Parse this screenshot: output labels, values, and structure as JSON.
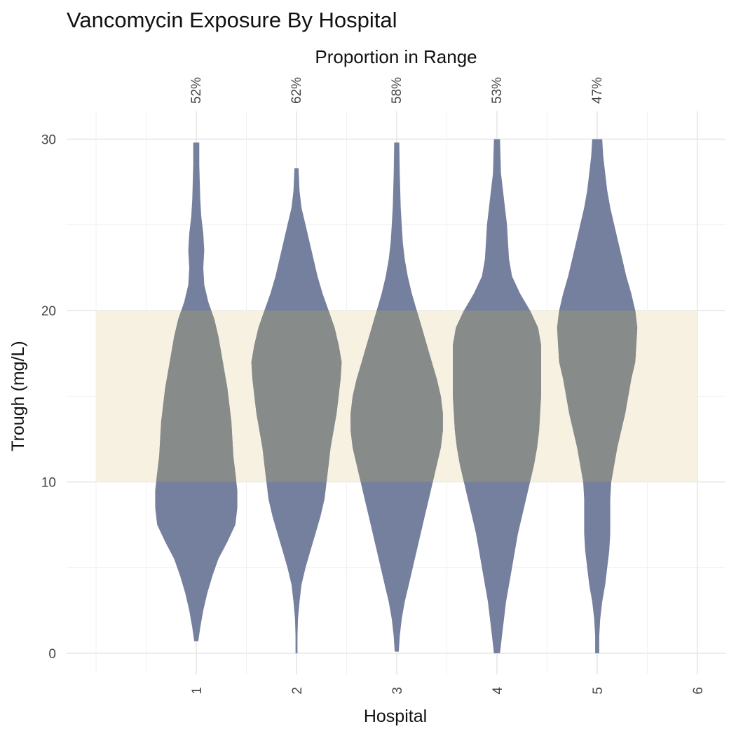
{
  "chart_data": {
    "type": "violin",
    "title": "Vancomycin Exposure By Hospital",
    "subtitle": "Proportion in Range",
    "xlabel": "Hospital",
    "ylabel": "Trough (mg/L)",
    "x_ticks": [
      "1",
      "2",
      "3",
      "4",
      "5",
      "6"
    ],
    "y_ticks": [
      "0",
      "10",
      "20",
      "30"
    ],
    "ylim": [
      0,
      30
    ],
    "xlim": [
      0,
      6
    ],
    "grid": true,
    "target_range": {
      "min": 10,
      "max": 20,
      "color": "#f7f1e1"
    },
    "violin_color": "#75809f",
    "overlap_color": "#878b8a",
    "hospitals": [
      {
        "x": 1,
        "proportion_in_range": "52%",
        "density": [
          [
            0.7,
            0.02
          ],
          [
            1.5,
            0.04
          ],
          [
            2.5,
            0.07
          ],
          [
            3.5,
            0.11
          ],
          [
            4.5,
            0.16
          ],
          [
            5.5,
            0.22
          ],
          [
            6.5,
            0.31
          ],
          [
            7.5,
            0.39
          ],
          [
            8.5,
            0.41
          ],
          [
            9.5,
            0.41
          ],
          [
            10.5,
            0.39
          ],
          [
            11.5,
            0.37
          ],
          [
            12.5,
            0.36
          ],
          [
            13.5,
            0.35
          ],
          [
            14.5,
            0.33
          ],
          [
            15.5,
            0.31
          ],
          [
            16.5,
            0.28
          ],
          [
            17.5,
            0.25
          ],
          [
            18.5,
            0.22
          ],
          [
            19.5,
            0.18
          ],
          [
            20.5,
            0.12
          ],
          [
            21.5,
            0.08
          ],
          [
            22.5,
            0.07
          ],
          [
            23.5,
            0.08
          ],
          [
            24.5,
            0.07
          ],
          [
            25.5,
            0.05
          ],
          [
            26.5,
            0.04
          ],
          [
            27.5,
            0.035
          ],
          [
            28.5,
            0.03
          ],
          [
            29.8,
            0.03
          ]
        ]
      },
      {
        "x": 2,
        "proportion_in_range": "62%",
        "density": [
          [
            0,
            0.01
          ],
          [
            1,
            0.01
          ],
          [
            2,
            0.015
          ],
          [
            3,
            0.03
          ],
          [
            4,
            0.05
          ],
          [
            5,
            0.09
          ],
          [
            6,
            0.14
          ],
          [
            7,
            0.19
          ],
          [
            8,
            0.24
          ],
          [
            9,
            0.28
          ],
          [
            10,
            0.3
          ],
          [
            11,
            0.32
          ],
          [
            12,
            0.34
          ],
          [
            13,
            0.37
          ],
          [
            14,
            0.4
          ],
          [
            15,
            0.42
          ],
          [
            16,
            0.44
          ],
          [
            17,
            0.45
          ],
          [
            18,
            0.42
          ],
          [
            19,
            0.38
          ],
          [
            20,
            0.32
          ],
          [
            21,
            0.26
          ],
          [
            22,
            0.21
          ],
          [
            23,
            0.17
          ],
          [
            24,
            0.13
          ],
          [
            25,
            0.09
          ],
          [
            26,
            0.05
          ],
          [
            27,
            0.03
          ],
          [
            28.3,
            0.02
          ]
        ]
      },
      {
        "x": 3,
        "proportion_in_range": "58%",
        "density": [
          [
            0.1,
            0.02
          ],
          [
            1,
            0.03
          ],
          [
            2,
            0.05
          ],
          [
            3,
            0.08
          ],
          [
            4,
            0.12
          ],
          [
            5,
            0.16
          ],
          [
            6,
            0.2
          ],
          [
            7,
            0.24
          ],
          [
            8,
            0.28
          ],
          [
            9,
            0.32
          ],
          [
            10,
            0.36
          ],
          [
            11,
            0.4
          ],
          [
            12,
            0.44
          ],
          [
            13,
            0.46
          ],
          [
            14,
            0.46
          ],
          [
            15,
            0.44
          ],
          [
            16,
            0.4
          ],
          [
            17,
            0.35
          ],
          [
            18,
            0.3
          ],
          [
            19,
            0.25
          ],
          [
            20,
            0.2
          ],
          [
            21,
            0.15
          ],
          [
            22,
            0.11
          ],
          [
            23,
            0.08
          ],
          [
            24,
            0.06
          ],
          [
            25,
            0.05
          ],
          [
            26,
            0.04
          ],
          [
            27,
            0.035
          ],
          [
            28,
            0.03
          ],
          [
            29.8,
            0.025
          ]
        ]
      },
      {
        "x": 4,
        "proportion_in_range": "53%",
        "density": [
          [
            0,
            0.03
          ],
          [
            1,
            0.05
          ],
          [
            2,
            0.07
          ],
          [
            3,
            0.09
          ],
          [
            4,
            0.12
          ],
          [
            5,
            0.15
          ],
          [
            6,
            0.18
          ],
          [
            7,
            0.21
          ],
          [
            8,
            0.25
          ],
          [
            9,
            0.29
          ],
          [
            10,
            0.33
          ],
          [
            11,
            0.37
          ],
          [
            12,
            0.4
          ],
          [
            13,
            0.42
          ],
          [
            14,
            0.43
          ],
          [
            15,
            0.44
          ],
          [
            16,
            0.44
          ],
          [
            17,
            0.44
          ],
          [
            18,
            0.44
          ],
          [
            19,
            0.41
          ],
          [
            20,
            0.33
          ],
          [
            21,
            0.23
          ],
          [
            22,
            0.15
          ],
          [
            23,
            0.12
          ],
          [
            24,
            0.11
          ],
          [
            25,
            0.1
          ],
          [
            26,
            0.08
          ],
          [
            27,
            0.06
          ],
          [
            28,
            0.04
          ],
          [
            30,
            0.03
          ]
        ]
      },
      {
        "x": 5,
        "proportion_in_range": "47%",
        "density": [
          [
            0,
            0.02
          ],
          [
            1,
            0.02
          ],
          [
            2,
            0.03
          ],
          [
            3,
            0.05
          ],
          [
            4,
            0.08
          ],
          [
            5,
            0.1
          ],
          [
            6,
            0.12
          ],
          [
            7,
            0.13
          ],
          [
            8,
            0.13
          ],
          [
            9,
            0.13
          ],
          [
            10,
            0.14
          ],
          [
            11,
            0.17
          ],
          [
            12,
            0.2
          ],
          [
            13,
            0.24
          ],
          [
            14,
            0.28
          ],
          [
            15,
            0.31
          ],
          [
            16,
            0.34
          ],
          [
            17,
            0.38
          ],
          [
            18,
            0.39
          ],
          [
            19,
            0.4
          ],
          [
            20,
            0.38
          ],
          [
            21,
            0.34
          ],
          [
            22,
            0.29
          ],
          [
            23,
            0.25
          ],
          [
            24,
            0.21
          ],
          [
            25,
            0.17
          ],
          [
            26,
            0.13
          ],
          [
            27,
            0.1
          ],
          [
            28,
            0.08
          ],
          [
            29,
            0.06
          ],
          [
            30,
            0.05
          ]
        ]
      }
    ]
  }
}
